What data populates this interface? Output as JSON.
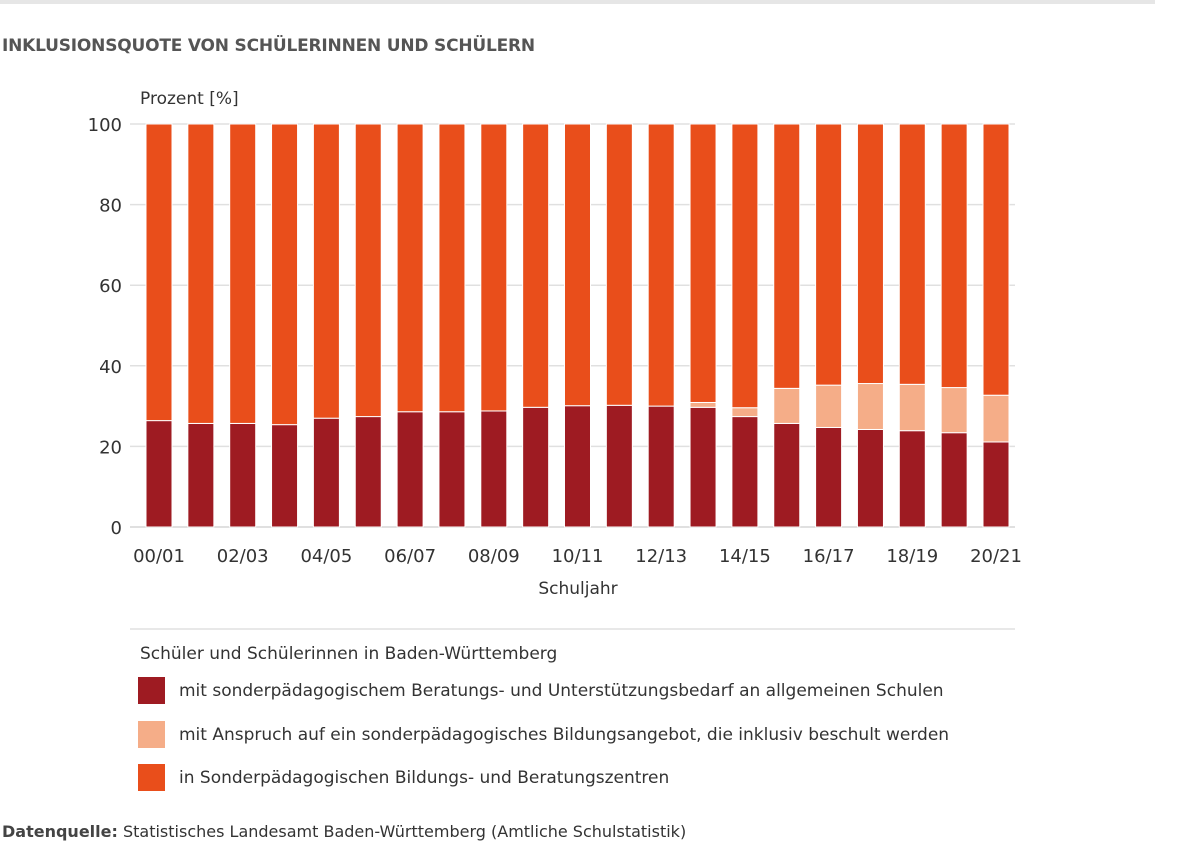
{
  "title": "INKLUSIONSQUOTE VON SCHÜLERINNEN UND SCHÜLERN",
  "source_label": "Datenquelle:",
  "source_text": " Statistisches Landesamt Baden-Württemberg (Amtliche Schulstatistik)",
  "legend_title": "Schüler und Schülerinnen in Baden-Württemberg",
  "chart_data": {
    "type": "bar",
    "stacked": true,
    "ylabel": "Prozent [%]",
    "xlabel": "Schuljahr",
    "ylim": [
      0,
      100
    ],
    "yticks": [
      0,
      20,
      40,
      60,
      80,
      100
    ],
    "grid": true,
    "legend_placement": "bottom",
    "categories": [
      "00/01",
      "01/02",
      "02/03",
      "03/04",
      "04/05",
      "05/06",
      "06/07",
      "07/08",
      "08/09",
      "09/10",
      "10/11",
      "11/12",
      "12/13",
      "13/14",
      "14/15",
      "15/16",
      "16/17",
      "17/18",
      "18/19",
      "19/20",
      "20/21"
    ],
    "xtick_labels": [
      "00/01",
      "02/03",
      "04/05",
      "06/07",
      "08/09",
      "10/11",
      "12/13",
      "14/15",
      "16/17",
      "18/19",
      "20/21"
    ],
    "series": [
      {
        "name": "mit sonderpädagogischem Beratungs- und Unterstützungsbedarf an allgemeinen Schulen",
        "color": "#9e1b22",
        "values": [
          26.4,
          25.7,
          25.7,
          25.4,
          27.0,
          27.4,
          28.6,
          28.6,
          28.8,
          29.7,
          30.1,
          30.2,
          30.0,
          29.7,
          27.4,
          25.7,
          24.7,
          24.2,
          23.9,
          23.4,
          21.1
        ]
      },
      {
        "name": "mit Anspruch auf ein sonderpädagogisches Bildungsangebot, die inklusiv beschult werden",
        "color": "#f5ad88",
        "values": [
          0,
          0,
          0,
          0,
          0,
          0,
          0,
          0,
          0,
          0,
          0,
          0,
          0,
          1.2,
          2.2,
          8.7,
          10.5,
          11.4,
          11.5,
          11.2,
          11.6
        ]
      },
      {
        "name": "in Sonderpädagogischen Bildungs- und Beratungszentren",
        "color": "#e94e1b",
        "values": [
          73.6,
          74.3,
          74.3,
          74.6,
          73.0,
          72.6,
          71.4,
          71.4,
          71.2,
          70.3,
          69.9,
          69.8,
          70.0,
          69.1,
          70.4,
          65.6,
          64.8,
          64.4,
          64.6,
          65.4,
          67.3
        ]
      }
    ]
  }
}
